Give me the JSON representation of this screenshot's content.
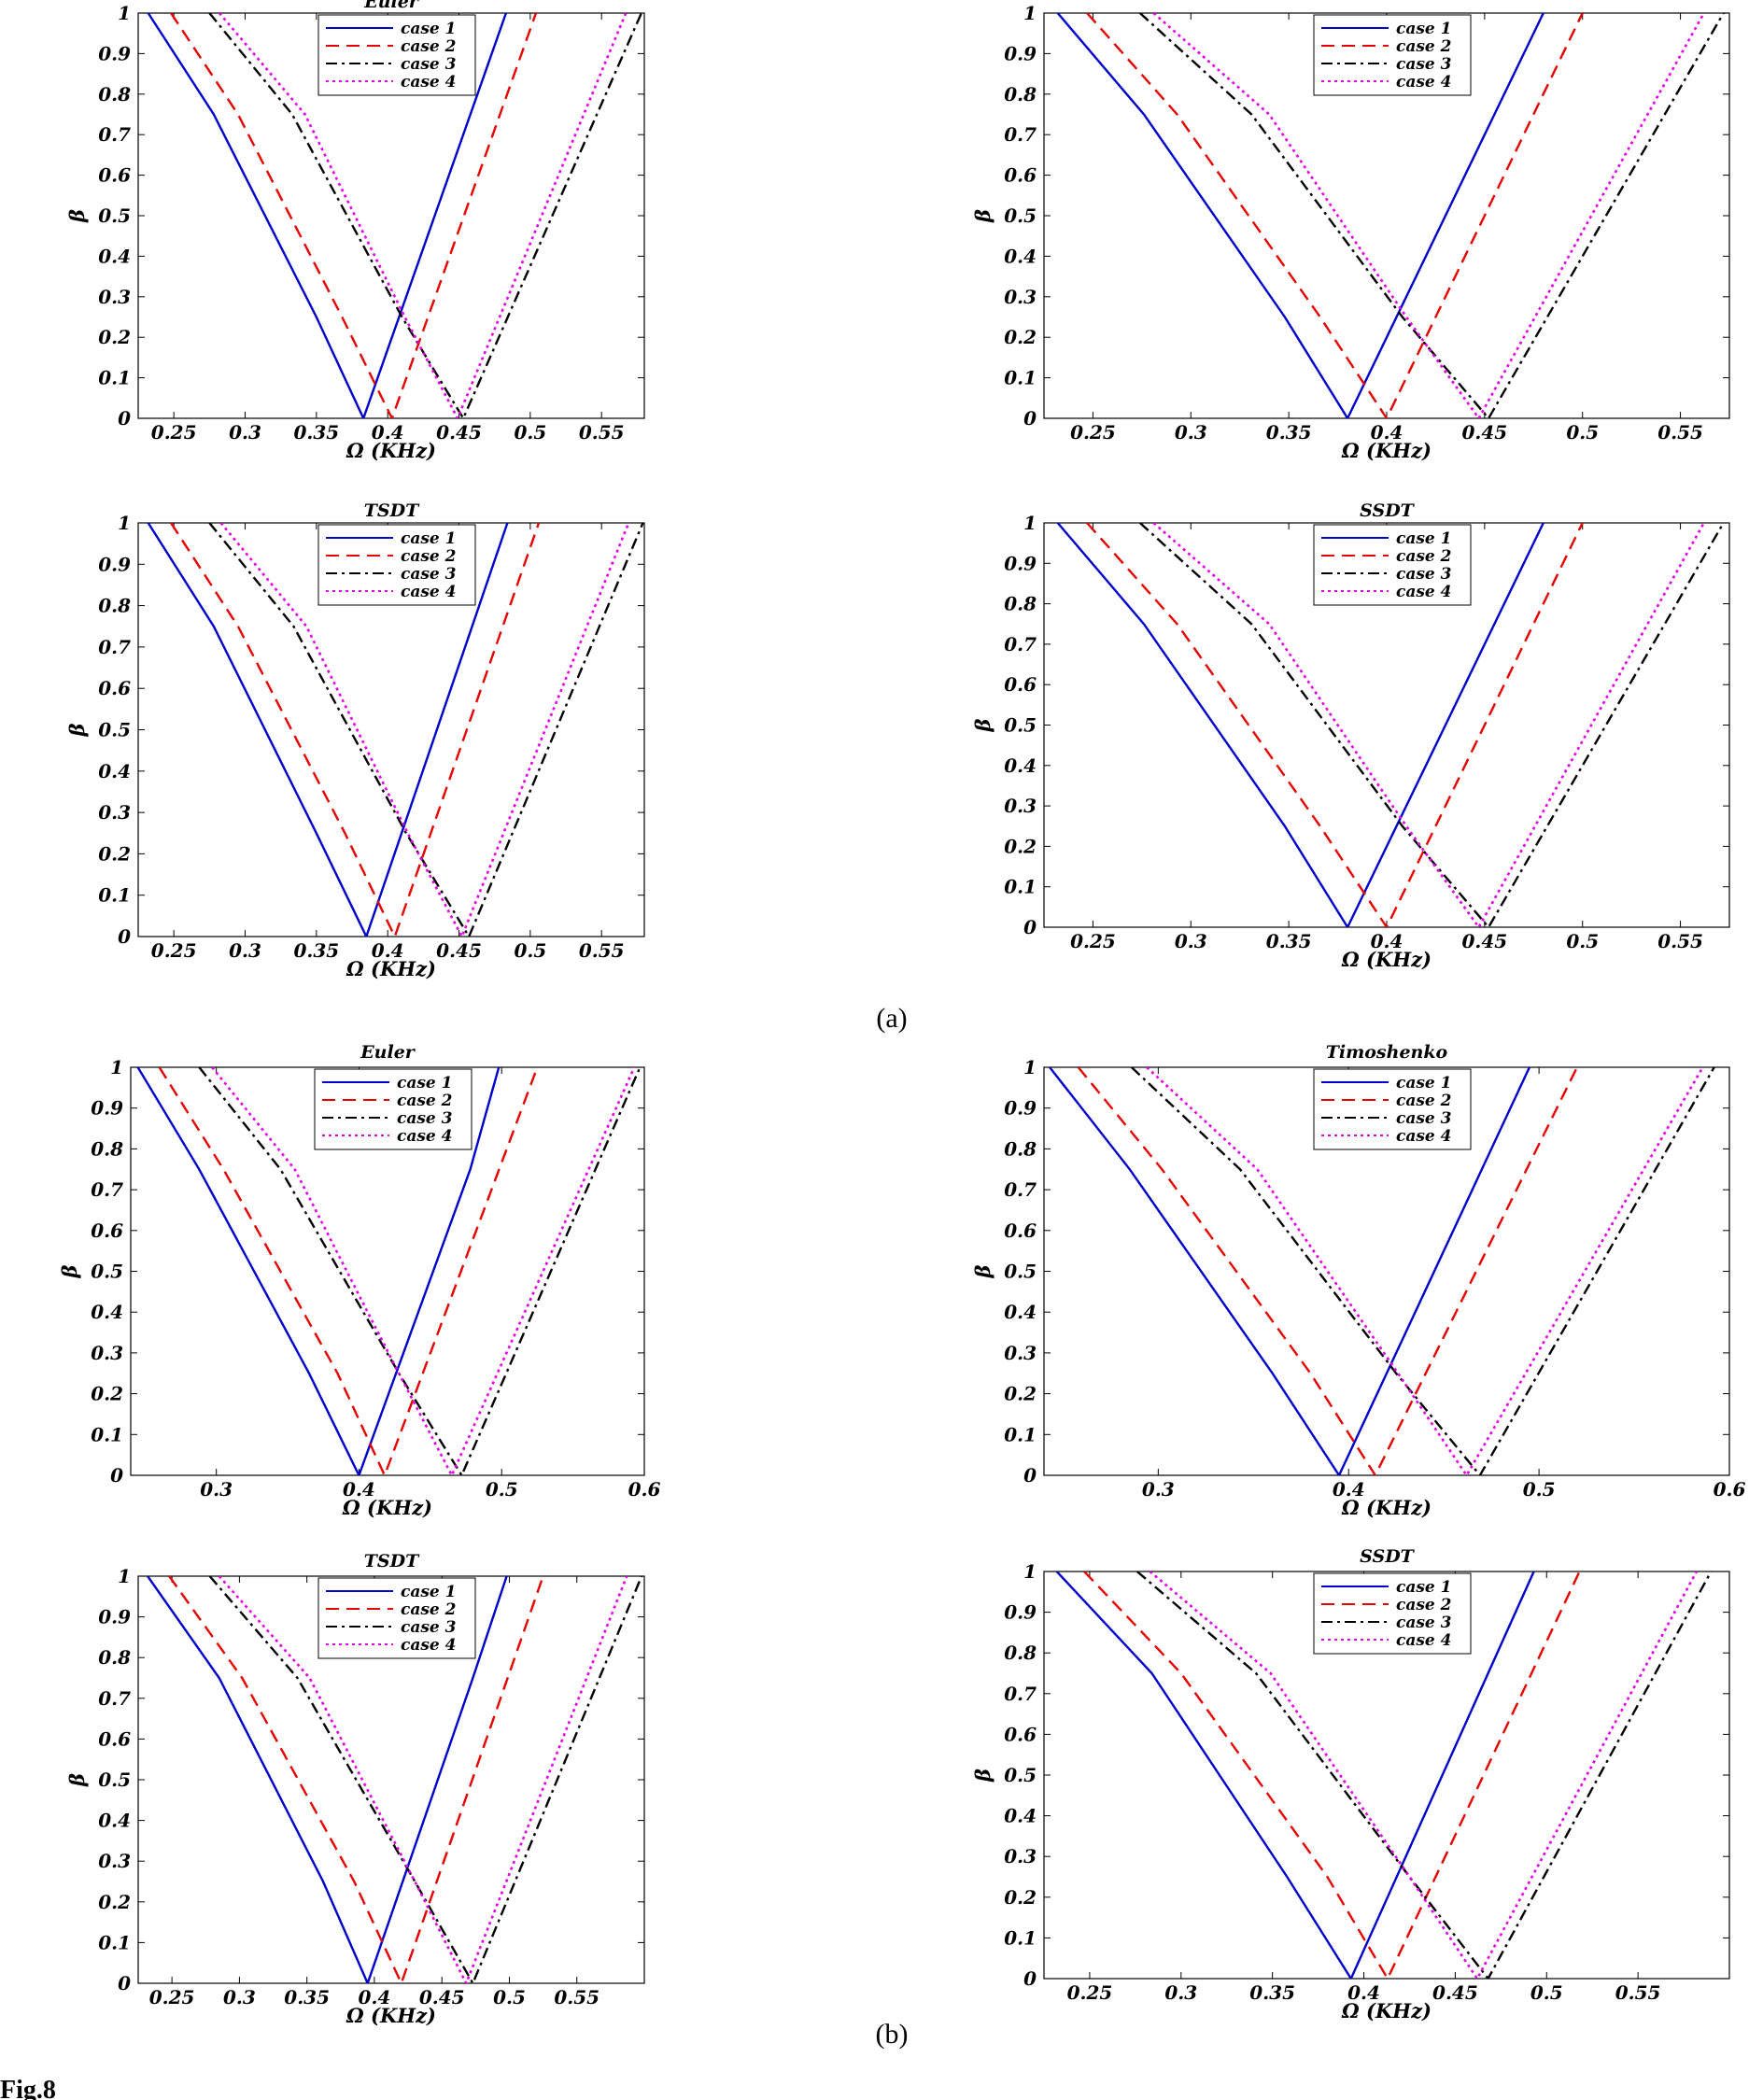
{
  "figure": {
    "caption": "Fig.8",
    "panel_labels": [
      "(a)",
      "(b)"
    ]
  },
  "series_styles": [
    {
      "name": "case 1",
      "color": "#0000cc",
      "dash": "solid"
    },
    {
      "name": "case 2",
      "color": "#e60000",
      "dash": "dashed"
    },
    {
      "name": "case 3",
      "color": "#000000",
      "dash": "dashdot"
    },
    {
      "name": "case 4",
      "color": "#e600e6",
      "dash": "dotted"
    }
  ],
  "chart_data": [
    {
      "type": "line",
      "panel": "(a)",
      "title": "Euler",
      "xlabel": "Ω (KHz)",
      "ylabel": "β",
      "xlim": [
        0.225,
        0.58
      ],
      "ylim": [
        0,
        1
      ],
      "xticks": [
        "0.25",
        "0.3",
        "0.35",
        "0.4",
        "0.45",
        "0.5",
        "0.55"
      ],
      "yticks": [
        "0",
        "0.1",
        "0.2",
        "0.3",
        "0.4",
        "0.5",
        "0.6",
        "0.7",
        "0.8",
        "0.9",
        "1"
      ],
      "legend": "top-center",
      "series": [
        {
          "name": "case 1",
          "x": [
            0.232,
            0.278,
            0.35,
            0.383,
            0.483
          ],
          "y": [
            1,
            0.75,
            0.25,
            0,
            1
          ]
        },
        {
          "name": "case 2",
          "x": [
            0.248,
            0.295,
            0.368,
            0.403,
            0.504
          ],
          "y": [
            1,
            0.75,
            0.25,
            0,
            1
          ]
        },
        {
          "name": "case 3",
          "x": [
            0.275,
            0.333,
            0.41,
            0.453,
            0.578
          ],
          "y": [
            1,
            0.75,
            0.25,
            0,
            1
          ]
        },
        {
          "name": "case 4",
          "x": [
            0.282,
            0.342,
            0.412,
            0.449,
            0.567
          ],
          "y": [
            1,
            0.75,
            0.25,
            0,
            1
          ]
        }
      ]
    },
    {
      "type": "line",
      "panel": "(a)",
      "title": "",
      "xlabel": "Ω (KHz)",
      "ylabel": "β",
      "xlim": [
        0.225,
        0.575
      ],
      "ylim": [
        0,
        1
      ],
      "xticks": [
        "0.25",
        "0.3",
        "0.35",
        "0.4",
        "0.45",
        "0.5",
        "0.55"
      ],
      "yticks": [
        "0",
        "0.1",
        "0.2",
        "0.3",
        "0.4",
        "0.5",
        "0.6",
        "0.7",
        "0.8",
        "0.9",
        "1"
      ],
      "legend": "top-center",
      "series": [
        {
          "name": "case 1",
          "x": [
            0.232,
            0.276,
            0.348,
            0.38,
            0.48
          ],
          "y": [
            1,
            0.75,
            0.25,
            0,
            1
          ]
        },
        {
          "name": "case 2",
          "x": [
            0.247,
            0.293,
            0.366,
            0.4,
            0.5
          ],
          "y": [
            1,
            0.75,
            0.25,
            0,
            1
          ]
        },
        {
          "name": "case 3",
          "x": [
            0.274,
            0.331,
            0.408,
            0.452,
            0.572
          ],
          "y": [
            1,
            0.75,
            0.25,
            0,
            1
          ]
        },
        {
          "name": "case 4",
          "x": [
            0.281,
            0.34,
            0.41,
            0.447,
            0.562
          ],
          "y": [
            1,
            0.75,
            0.25,
            0,
            1
          ]
        }
      ]
    },
    {
      "type": "line",
      "panel": "(a)",
      "title": "TSDT",
      "xlabel": "Ω (KHz)",
      "ylabel": "β",
      "xlim": [
        0.225,
        0.58
      ],
      "ylim": [
        0,
        1
      ],
      "xticks": [
        "0.25",
        "0.3",
        "0.35",
        "0.4",
        "0.45",
        "0.5",
        "0.55"
      ],
      "yticks": [
        "0",
        "0.1",
        "0.2",
        "0.3",
        "0.4",
        "0.5",
        "0.6",
        "0.7",
        "0.8",
        "0.9",
        "1"
      ],
      "legend": "top-center",
      "series": [
        {
          "name": "case 1",
          "x": [
            0.232,
            0.278,
            0.35,
            0.385,
            0.484
          ],
          "y": [
            1,
            0.75,
            0.25,
            0,
            1
          ]
        },
        {
          "name": "case 2",
          "x": [
            0.248,
            0.295,
            0.37,
            0.405,
            0.506
          ],
          "y": [
            1,
            0.75,
            0.25,
            0,
            1
          ]
        },
        {
          "name": "case 3",
          "x": [
            0.275,
            0.334,
            0.413,
            0.457,
            0.579
          ],
          "y": [
            1,
            0.75,
            0.25,
            0,
            1
          ]
        },
        {
          "name": "case 4",
          "x": [
            0.283,
            0.343,
            0.414,
            0.452,
            0.569
          ],
          "y": [
            1,
            0.75,
            0.25,
            0,
            1
          ]
        }
      ]
    },
    {
      "type": "line",
      "panel": "(a)",
      "title": "SSDT",
      "xlabel": "Ω (KHz)",
      "ylabel": "β",
      "xlim": [
        0.225,
        0.575
      ],
      "ylim": [
        0,
        1
      ],
      "xticks": [
        "0.25",
        "0.3",
        "0.35",
        "0.4",
        "0.45",
        "0.5",
        "0.55"
      ],
      "yticks": [
        "0",
        "0.1",
        "0.2",
        "0.3",
        "0.4",
        "0.5",
        "0.6",
        "0.7",
        "0.8",
        "0.9",
        "1"
      ],
      "legend": "top-center",
      "series": [
        {
          "name": "case 1",
          "x": [
            0.232,
            0.276,
            0.348,
            0.38,
            0.48
          ],
          "y": [
            1,
            0.75,
            0.25,
            0,
            1
          ]
        },
        {
          "name": "case 2",
          "x": [
            0.247,
            0.293,
            0.366,
            0.4,
            0.5
          ],
          "y": [
            1,
            0.75,
            0.25,
            0,
            1
          ]
        },
        {
          "name": "case 3",
          "x": [
            0.274,
            0.331,
            0.408,
            0.452,
            0.572
          ],
          "y": [
            1,
            0.75,
            0.25,
            0,
            1
          ]
        },
        {
          "name": "case 4",
          "x": [
            0.281,
            0.34,
            0.41,
            0.447,
            0.562
          ],
          "y": [
            1,
            0.75,
            0.25,
            0,
            1
          ]
        }
      ]
    },
    {
      "type": "line",
      "panel": "(b)",
      "title": "Euler",
      "xlabel": "Ω (KHz)",
      "ylabel": "β",
      "xlim": [
        0.24,
        0.6
      ],
      "ylim": [
        0,
        1
      ],
      "xticks": [
        "0.3",
        "0.4",
        "0.5",
        "0.6"
      ],
      "yticks": [
        "0",
        "0.1",
        "0.2",
        "0.3",
        "0.4",
        "0.5",
        "0.6",
        "0.7",
        "0.8",
        "0.9",
        "1"
      ],
      "legend": "top-center",
      "series": [
        {
          "name": "case 1",
          "x": [
            0.245,
            0.288,
            0.365,
            0.4,
            0.478,
            0.498
          ],
          "y": [
            1,
            0.75,
            0.25,
            0,
            0.75,
            1
          ]
        },
        {
          "name": "case 2",
          "x": [
            0.26,
            0.305,
            0.385,
            0.418,
            0.525
          ],
          "y": [
            1,
            0.75,
            0.25,
            0,
            1
          ]
        },
        {
          "name": "case 3",
          "x": [
            0.288,
            0.345,
            0.428,
            0.472,
            0.597
          ],
          "y": [
            1,
            0.75,
            0.25,
            0,
            1
          ]
        },
        {
          "name": "case 4",
          "x": [
            0.297,
            0.355,
            0.428,
            0.465,
            0.593
          ],
          "y": [
            1,
            0.75,
            0.25,
            0,
            1
          ]
        }
      ]
    },
    {
      "type": "line",
      "panel": "(b)",
      "title": "Timoshenko",
      "xlabel": "Ω (KHz)",
      "ylabel": "β",
      "xlim": [
        0.24,
        0.6
      ],
      "ylim": [
        0,
        1
      ],
      "xticks": [
        "0.3",
        "0.4",
        "0.5",
        "0.6"
      ],
      "yticks": [
        "0",
        "0.1",
        "0.2",
        "0.3",
        "0.4",
        "0.5",
        "0.6",
        "0.7",
        "0.8",
        "0.9",
        "1"
      ],
      "legend": "top-center",
      "series": [
        {
          "name": "case 1",
          "x": [
            0.243,
            0.285,
            0.36,
            0.395,
            0.47,
            0.495
          ],
          "y": [
            1,
            0.75,
            0.25,
            0,
            0.75,
            1
          ]
        },
        {
          "name": "case 2",
          "x": [
            0.258,
            0.302,
            0.38,
            0.414,
            0.52
          ],
          "y": [
            1,
            0.75,
            0.25,
            0,
            1
          ]
        },
        {
          "name": "case 3",
          "x": [
            0.286,
            0.343,
            0.425,
            0.469,
            0.592
          ],
          "y": [
            1,
            0.75,
            0.25,
            0,
            1
          ]
        },
        {
          "name": "case 4",
          "x": [
            0.294,
            0.352,
            0.426,
            0.462,
            0.586
          ],
          "y": [
            1,
            0.75,
            0.25,
            0,
            1
          ]
        }
      ]
    },
    {
      "type": "line",
      "panel": "(b)",
      "title": "TSDT",
      "xlabel": "Ω (KHz)",
      "ylabel": "β",
      "xlim": [
        0.225,
        0.6
      ],
      "ylim": [
        0,
        1
      ],
      "xticks": [
        "0.25",
        "0.3",
        "0.35",
        "0.4",
        "0.45",
        "0.5",
        "0.55"
      ],
      "yticks": [
        "0",
        "0.1",
        "0.2",
        "0.3",
        "0.4",
        "0.5",
        "0.6",
        "0.7",
        "0.8",
        "0.9",
        "1"
      ],
      "legend": "top-center",
      "series": [
        {
          "name": "case 1",
          "x": [
            0.232,
            0.285,
            0.362,
            0.395,
            0.473,
            0.498
          ],
          "y": [
            1,
            0.75,
            0.25,
            0,
            0.75,
            1
          ]
        },
        {
          "name": "case 2",
          "x": [
            0.248,
            0.302,
            0.385,
            0.42,
            0.525
          ],
          "y": [
            1,
            0.75,
            0.25,
            0,
            1
          ]
        },
        {
          "name": "case 3",
          "x": [
            0.278,
            0.343,
            0.43,
            0.473,
            0.598
          ],
          "y": [
            1,
            0.75,
            0.25,
            0,
            1
          ]
        },
        {
          "name": "case 4",
          "x": [
            0.285,
            0.352,
            0.43,
            0.468,
            0.587
          ],
          "y": [
            1,
            0.75,
            0.25,
            0,
            1
          ]
        }
      ]
    },
    {
      "type": "line",
      "panel": "(b)",
      "title": "SSDT",
      "xlabel": "Ω (KHz)",
      "ylabel": "β",
      "xlim": [
        0.225,
        0.6
      ],
      "ylim": [
        0,
        1
      ],
      "xticks": [
        "0.25",
        "0.3",
        "0.35",
        "0.4",
        "0.45",
        "0.5",
        "0.55"
      ],
      "yticks": [
        "0",
        "0.1",
        "0.2",
        "0.3",
        "0.4",
        "0.5",
        "0.6",
        "0.7",
        "0.8",
        "0.9",
        "1"
      ],
      "legend": "top-center",
      "series": [
        {
          "name": "case 1",
          "x": [
            0.232,
            0.284,
            0.358,
            0.393,
            0.468,
            0.493
          ],
          "y": [
            1,
            0.75,
            0.25,
            0,
            0.75,
            1
          ]
        },
        {
          "name": "case 2",
          "x": [
            0.247,
            0.3,
            0.38,
            0.413,
            0.518
          ],
          "y": [
            1,
            0.75,
            0.25,
            0,
            1
          ]
        },
        {
          "name": "case 3",
          "x": [
            0.276,
            0.341,
            0.425,
            0.468,
            0.59
          ],
          "y": [
            1,
            0.75,
            0.25,
            0,
            1
          ]
        },
        {
          "name": "case 4",
          "x": [
            0.283,
            0.349,
            0.425,
            0.462,
            0.582
          ],
          "y": [
            1,
            0.75,
            0.25,
            0,
            1
          ]
        }
      ]
    }
  ]
}
